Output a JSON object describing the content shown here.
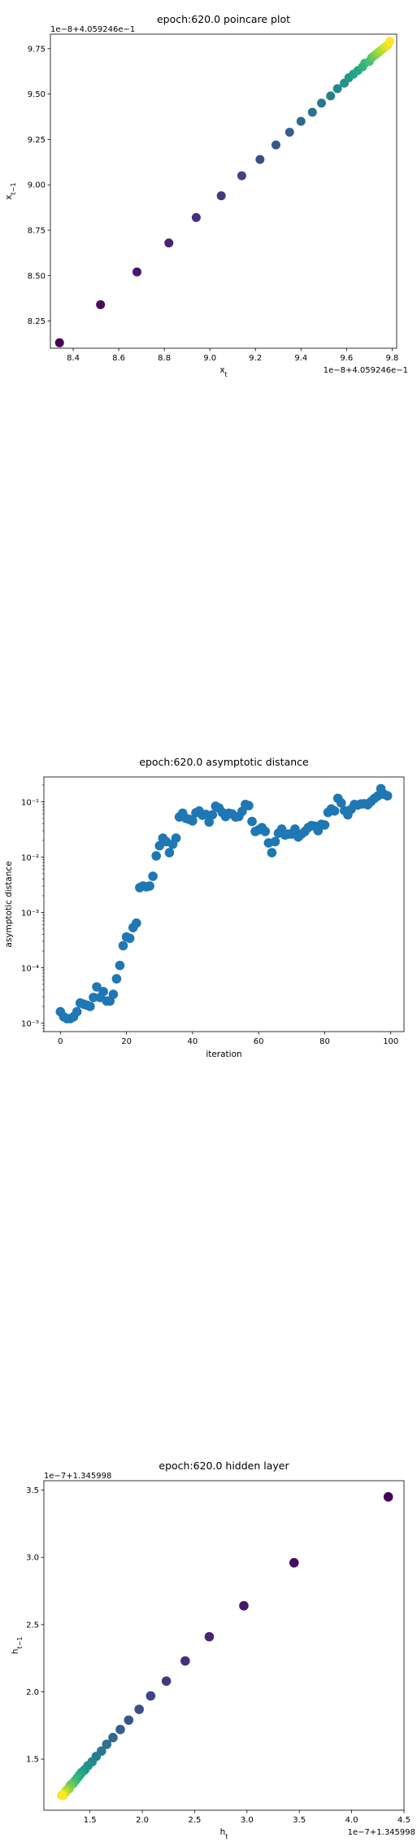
{
  "chart_data": [
    {
      "type": "scatter",
      "title": "epoch:620.0 poincare plot",
      "xlabel": "x_t",
      "ylabel": "x_{t-1}",
      "x_offset_text": "1e−8+4.059246e−1",
      "y_offset_text": "1e−8+4.059246e−1",
      "xlim": [
        8.3,
        9.82
      ],
      "ylim": [
        8.1,
        9.83
      ],
      "xticks": [
        "8.4",
        "8.6",
        "8.8",
        "9.0",
        "9.2",
        "9.4",
        "9.6",
        "9.8"
      ],
      "yticks": [
        "8.25",
        "8.50",
        "8.75",
        "9.00",
        "9.25",
        "9.50",
        "9.75"
      ],
      "colormap": "viridis",
      "x": [
        8.34,
        8.52,
        8.68,
        8.82,
        8.94,
        9.05,
        9.14,
        9.22,
        9.29,
        9.35,
        9.4,
        9.45,
        9.49,
        9.53,
        9.56,
        9.59,
        9.61,
        9.63,
        9.65,
        9.67,
        9.68,
        9.7,
        9.71,
        9.72,
        9.73,
        9.74,
        9.75,
        9.76,
        9.77,
        9.78,
        9.79
      ],
      "y": [
        8.13,
        8.34,
        8.52,
        8.68,
        8.82,
        8.94,
        9.05,
        9.14,
        9.22,
        9.29,
        9.35,
        9.4,
        9.45,
        9.49,
        9.53,
        9.56,
        9.59,
        9.61,
        9.63,
        9.65,
        9.67,
        9.68,
        9.7,
        9.71,
        9.72,
        9.73,
        9.74,
        9.75,
        9.76,
        9.77,
        9.79
      ]
    },
    {
      "type": "scatter",
      "title": "epoch:620.0 asymptotic distance",
      "xlabel": "iteration",
      "ylabel": "asymptotic distance",
      "yscale": "log",
      "xlim": [
        -5,
        104
      ],
      "ylim": [
        7e-06,
        0.28
      ],
      "xticks": [
        "0",
        "20",
        "40",
        "60",
        "80",
        "100"
      ],
      "yticks": [
        "10⁻⁵",
        "10⁻⁴",
        "10⁻³",
        "10⁻²",
        "10⁻¹"
      ],
      "color": "#1f77b4",
      "x": [
        0,
        1,
        2,
        3,
        4,
        5,
        6,
        7,
        8,
        9,
        10,
        11,
        12,
        13,
        14,
        15,
        16,
        17,
        18,
        19,
        20,
        21,
        22,
        23,
        24,
        25,
        26,
        27,
        28,
        29,
        30,
        31,
        32,
        33,
        34,
        35,
        36,
        37,
        38,
        39,
        40,
        41,
        42,
        43,
        44,
        45,
        46,
        47,
        48,
        49,
        50,
        51,
        52,
        53,
        54,
        55,
        56,
        57,
        58,
        59,
        60,
        61,
        62,
        63,
        64,
        65,
        66,
        67,
        68,
        69,
        70,
        71,
        72,
        73,
        74,
        75,
        76,
        77,
        78,
        79,
        80,
        81,
        82,
        83,
        84,
        85,
        86,
        87,
        88,
        89,
        90,
        91,
        92,
        93,
        94,
        95,
        96,
        97,
        98,
        99
      ],
      "y": [
        1.6e-05,
        1.3e-05,
        1.2e-05,
        1.2e-05,
        1.3e-05,
        1.6e-05,
        2.3e-05,
        2.2e-05,
        2.1e-05,
        2e-05,
        2.9e-05,
        4.5e-05,
        2.9e-05,
        3.7e-05,
        2.5e-05,
        2.5e-05,
        3.3e-05,
        6.3e-05,
        0.00011,
        0.00025,
        0.00036,
        0.00034,
        0.00053,
        0.00064,
        0.0028,
        0.003,
        0.0029,
        0.003,
        0.0045,
        0.0105,
        0.016,
        0.022,
        0.019,
        0.012,
        0.017,
        0.022,
        0.053,
        0.062,
        0.05,
        0.048,
        0.045,
        0.063,
        0.068,
        0.057,
        0.059,
        0.043,
        0.058,
        0.083,
        0.077,
        0.064,
        0.054,
        0.062,
        0.06,
        0.053,
        0.054,
        0.067,
        0.089,
        0.085,
        0.044,
        0.029,
        0.031,
        0.034,
        0.029,
        0.018,
        0.012,
        0.019,
        0.027,
        0.032,
        0.025,
        0.026,
        0.026,
        0.032,
        0.023,
        0.026,
        0.029,
        0.034,
        0.037,
        0.036,
        0.03,
        0.039,
        0.038,
        0.064,
        0.074,
        0.068,
        0.115,
        0.095,
        0.069,
        0.058,
        0.073,
        0.089,
        0.087,
        0.091,
        0.092,
        0.088,
        0.1,
        0.114,
        0.126,
        0.172,
        0.136,
        0.128
      ]
    },
    {
      "type": "scatter",
      "title": "epoch:620.0 hidden layer",
      "xlabel": "h_t",
      "ylabel": "h_{t-1}",
      "x_offset_text": "1e−7+1.345998",
      "y_offset_text": "1e−7+1.345998",
      "xlim": [
        1.06,
        4.5
      ],
      "ylim": [
        1.12,
        3.57
      ],
      "xticks": [
        "1.5",
        "2.0",
        "2.5",
        "3.0",
        "3.5",
        "4.0",
        "4.5"
      ],
      "yticks": [
        "1.5",
        "2.0",
        "2.5",
        "3.0",
        "3.5"
      ],
      "colormap": "viridis",
      "x": [
        4.35,
        3.45,
        2.97,
        2.64,
        2.41,
        2.23,
        2.08,
        1.97,
        1.87,
        1.79,
        1.72,
        1.66,
        1.61,
        1.56,
        1.52,
        1.48,
        1.45,
        1.42,
        1.4,
        1.38,
        1.36,
        1.34,
        1.32,
        1.31,
        1.3,
        1.28,
        1.27,
        1.26,
        1.25,
        1.24,
        1.23
      ],
      "y": [
        3.45,
        2.96,
        2.64,
        2.41,
        2.23,
        2.08,
        1.97,
        1.87,
        1.79,
        1.72,
        1.66,
        1.61,
        1.56,
        1.52,
        1.48,
        1.45,
        1.42,
        1.4,
        1.38,
        1.36,
        1.34,
        1.32,
        1.31,
        1.3,
        1.28,
        1.27,
        1.26,
        1.25,
        1.24,
        1.23,
        1.23
      ]
    }
  ]
}
